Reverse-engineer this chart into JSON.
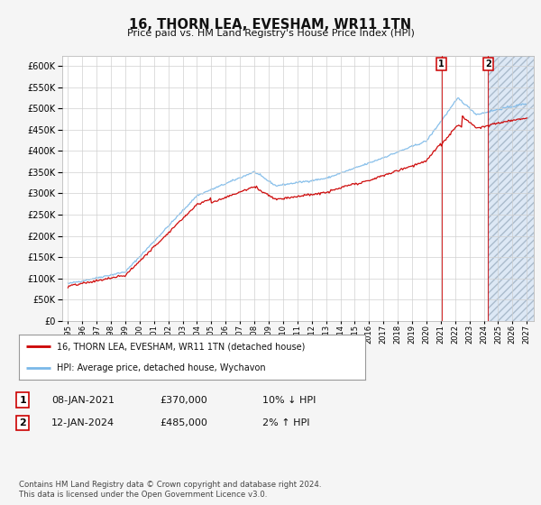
{
  "title": "16, THORN LEA, EVESHAM, WR11 1TN",
  "subtitle": "Price paid vs. HM Land Registry's House Price Index (HPI)",
  "legend_line1": "16, THORN LEA, EVESHAM, WR11 1TN (detached house)",
  "legend_line2": "HPI: Average price, detached house, Wychavon",
  "annotation1": {
    "num": "1",
    "date": "08-JAN-2021",
    "price": "£370,000",
    "change": "10% ↓ HPI"
  },
  "annotation2": {
    "num": "2",
    "date": "12-JAN-2024",
    "price": "£485,000",
    "change": "2% ↑ HPI"
  },
  "footer": "Contains HM Land Registry data © Crown copyright and database right 2024.\nThis data is licensed under the Open Government Licence v3.0.",
  "hpi_color": "#7ab8e8",
  "price_color": "#cc0000",
  "hatch_color": "#b8cfe0",
  "plot_bg": "#ffffff",
  "fig_bg": "#f5f5f5",
  "grid_color": "#d0d0d0",
  "ylim": [
    0,
    625000
  ],
  "yticks": [
    0,
    50000,
    100000,
    150000,
    200000,
    250000,
    300000,
    350000,
    400000,
    450000,
    500000,
    550000,
    600000
  ],
  "xlim_start": 1994.6,
  "xlim_end": 2027.5,
  "hatch_start_year": 2024.3,
  "marker1_x": 2021.05,
  "marker2_x": 2024.3
}
